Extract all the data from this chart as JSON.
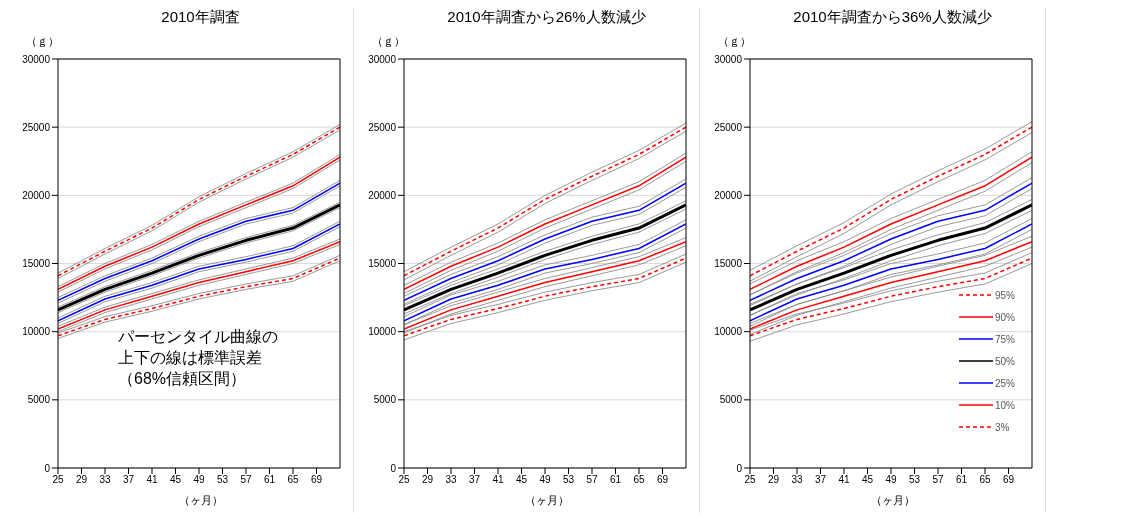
{
  "chart_data": [
    {
      "type": "line",
      "title": "2010年調査",
      "ylabel": "（ｇ）",
      "xlabel": "（ヶ月）",
      "x": [
        25,
        33,
        41,
        49,
        57,
        65,
        73
      ],
      "xlim": [
        25,
        73
      ],
      "xticks": [
        25,
        29,
        33,
        37,
        41,
        45,
        49,
        53,
        57,
        61,
        65,
        69
      ],
      "ylim": [
        0,
        30000
      ],
      "yticks": [
        0,
        5000,
        10000,
        15000,
        20000,
        25000,
        30000
      ],
      "grid": "y",
      "legend": false,
      "annotations": [
        "パーセンタイル曲線の上下の線は標準誤差",
        "（68%信頼区間）"
      ],
      "series": [
        {
          "color": "#ff0000",
          "line_style": "dashed",
          "values": [
            14100,
            15900,
            17600,
            19700,
            21400,
            23000,
            25000
          ]
        },
        {
          "color": "#ff0000",
          "line_style": "solid",
          "values": [
            13100,
            14800,
            16200,
            17900,
            19300,
            20700,
            22800
          ]
        },
        {
          "color": "#0000ff",
          "line_style": "solid",
          "values": [
            12300,
            13900,
            15200,
            16800,
            18100,
            18900,
            20900
          ]
        },
        {
          "color": "#000000",
          "line_style": "solid",
          "values": [
            11600,
            13100,
            14300,
            15600,
            16700,
            17600,
            19300
          ]
        },
        {
          "color": "#0000ff",
          "line_style": "solid",
          "values": [
            10800,
            12400,
            13400,
            14600,
            15300,
            16100,
            17900
          ]
        },
        {
          "color": "#ff0000",
          "line_style": "solid",
          "values": [
            10200,
            11600,
            12600,
            13600,
            14400,
            15200,
            16600
          ]
        },
        {
          "color": "#ff0000",
          "line_style": "dashed",
          "values": [
            9700,
            10900,
            11700,
            12600,
            13300,
            13900,
            15400
          ]
        },
        {
          "color": "#808080",
          "values": [
            13900,
            15700,
            17400,
            19500,
            21200,
            22800,
            24800
          ]
        },
        {
          "color": "#808080",
          "values": [
            14300,
            16100,
            17800,
            19900,
            21600,
            23200,
            25200
          ]
        },
        {
          "color": "#808080",
          "values": [
            12900,
            14600,
            16000,
            17700,
            19100,
            20500,
            22600
          ]
        },
        {
          "color": "#808080",
          "values": [
            13300,
            15000,
            16400,
            18100,
            19500,
            20900,
            23000
          ]
        },
        {
          "color": "#808080",
          "values": [
            12100,
            13700,
            15000,
            16600,
            17900,
            18700,
            20700
          ]
        },
        {
          "color": "#808080",
          "values": [
            12500,
            14100,
            15400,
            17000,
            18300,
            19100,
            21100
          ]
        },
        {
          "color": "#808080",
          "values": [
            11400,
            12900,
            14100,
            15400,
            16500,
            17400,
            19100
          ]
        },
        {
          "color": "#808080",
          "values": [
            11800,
            13300,
            14500,
            15800,
            16900,
            17800,
            19500
          ]
        },
        {
          "color": "#808080",
          "values": [
            10600,
            12200,
            13200,
            14400,
            15100,
            15900,
            17700
          ]
        },
        {
          "color": "#808080",
          "values": [
            11000,
            12600,
            13600,
            14800,
            15500,
            16300,
            18100
          ]
        },
        {
          "color": "#808080",
          "values": [
            10000,
            11400,
            12400,
            13400,
            14200,
            15000,
            16400
          ]
        },
        {
          "color": "#808080",
          "values": [
            10400,
            11800,
            12800,
            13800,
            14600,
            15400,
            16800
          ]
        },
        {
          "color": "#808080",
          "values": [
            9500,
            10700,
            11500,
            12400,
            13100,
            13700,
            15200
          ]
        },
        {
          "color": "#808080",
          "values": [
            9900,
            11100,
            11900,
            12800,
            13500,
            14100,
            15600
          ]
        }
      ]
    },
    {
      "type": "line",
      "title": "2010年調査から26%人数減少",
      "ylabel": "（ｇ）",
      "xlabel": "（ヶ月）",
      "x": [
        25,
        33,
        41,
        49,
        57,
        65,
        73
      ],
      "xlim": [
        25,
        73
      ],
      "xticks": [
        25,
        29,
        33,
        37,
        41,
        45,
        49,
        53,
        57,
        61,
        65,
        69
      ],
      "ylim": [
        0,
        30000
      ],
      "yticks": [
        0,
        5000,
        10000,
        15000,
        20000,
        25000,
        30000
      ],
      "grid": "y",
      "legend": false,
      "series": [
        {
          "color": "#ff0000",
          "line_style": "dashed",
          "values": [
            14100,
            15900,
            17600,
            19700,
            21400,
            23000,
            25000
          ]
        },
        {
          "color": "#ff0000",
          "line_style": "solid",
          "values": [
            13100,
            14800,
            16200,
            17900,
            19300,
            20700,
            22800
          ]
        },
        {
          "color": "#0000ff",
          "line_style": "solid",
          "values": [
            12300,
            13900,
            15200,
            16800,
            18100,
            18900,
            20900
          ]
        },
        {
          "color": "#000000",
          "line_style": "solid",
          "values": [
            11600,
            13100,
            14300,
            15600,
            16700,
            17600,
            19300
          ]
        },
        {
          "color": "#0000ff",
          "line_style": "solid",
          "values": [
            10800,
            12400,
            13400,
            14600,
            15300,
            16100,
            17900
          ]
        },
        {
          "color": "#ff0000",
          "line_style": "solid",
          "values": [
            10200,
            11600,
            12600,
            13600,
            14400,
            15200,
            16600
          ]
        },
        {
          "color": "#ff0000",
          "line_style": "dashed",
          "values": [
            9700,
            10900,
            11700,
            12600,
            13300,
            13900,
            15400
          ]
        },
        {
          "color": "#808080",
          "values": [
            13800,
            15600,
            17300,
            19400,
            21100,
            22700,
            24700
          ]
        },
        {
          "color": "#808080",
          "values": [
            14400,
            16200,
            17900,
            20000,
            21700,
            23300,
            25300
          ]
        },
        {
          "color": "#808080",
          "values": [
            12800,
            14500,
            15900,
            17600,
            19000,
            20400,
            22500
          ]
        },
        {
          "color": "#808080",
          "values": [
            13400,
            15100,
            16500,
            18200,
            19600,
            21000,
            23100
          ]
        },
        {
          "color": "#808080",
          "values": [
            12000,
            13600,
            14900,
            16500,
            17800,
            18600,
            20600
          ]
        },
        {
          "color": "#808080",
          "values": [
            12600,
            14200,
            15500,
            17100,
            18400,
            19200,
            21200
          ]
        },
        {
          "color": "#808080",
          "values": [
            11300,
            12800,
            14000,
            15300,
            16400,
            17300,
            19000
          ]
        },
        {
          "color": "#808080",
          "values": [
            11900,
            13400,
            14600,
            15900,
            17000,
            17900,
            19600
          ]
        },
        {
          "color": "#808080",
          "values": [
            10500,
            12100,
            13100,
            14300,
            15000,
            15800,
            17600
          ]
        },
        {
          "color": "#808080",
          "values": [
            11100,
            12700,
            13700,
            14900,
            15600,
            16400,
            18200
          ]
        },
        {
          "color": "#808080",
          "values": [
            9900,
            11300,
            12300,
            13300,
            14100,
            14900,
            16300
          ]
        },
        {
          "color": "#808080",
          "values": [
            10500,
            11900,
            12900,
            13900,
            14700,
            15500,
            16900
          ]
        },
        {
          "color": "#808080",
          "values": [
            9400,
            10600,
            11400,
            12300,
            13000,
            13600,
            15100
          ]
        },
        {
          "color": "#808080",
          "values": [
            10000,
            11200,
            12000,
            12900,
            13600,
            14200,
            15700
          ]
        }
      ]
    },
    {
      "type": "line",
      "title": "2010年調査から36%人数減少",
      "ylabel": "（ｇ）",
      "xlabel": "（ヶ月）",
      "x": [
        25,
        33,
        41,
        49,
        57,
        65,
        73
      ],
      "xlim": [
        25,
        73
      ],
      "xticks": [
        25,
        29,
        33,
        37,
        41,
        45,
        49,
        53,
        57,
        61,
        65,
        69
      ],
      "ylim": [
        0,
        30000
      ],
      "yticks": [
        0,
        5000,
        10000,
        15000,
        20000,
        25000,
        30000
      ],
      "grid": "y",
      "legend": "bottom right",
      "series": [
        {
          "name": "95%",
          "color": "#ff0000",
          "line_style": "dashed",
          "values": [
            14100,
            15900,
            17600,
            19700,
            21400,
            23000,
            25000
          ]
        },
        {
          "name": "90%",
          "color": "#ff0000",
          "line_style": "solid",
          "values": [
            13100,
            14800,
            16200,
            17900,
            19300,
            20700,
            22800
          ]
        },
        {
          "name": "75%",
          "color": "#0000ff",
          "line_style": "solid",
          "values": [
            12300,
            13900,
            15200,
            16800,
            18100,
            18900,
            20900
          ]
        },
        {
          "name": "50%",
          "color": "#000000",
          "line_style": "solid",
          "values": [
            11600,
            13100,
            14300,
            15600,
            16700,
            17600,
            19300
          ]
        },
        {
          "name": "25%",
          "color": "#0000ff",
          "line_style": "solid",
          "values": [
            10800,
            12400,
            13400,
            14600,
            15300,
            16100,
            17900
          ]
        },
        {
          "name": "10%",
          "color": "#ff0000",
          "line_style": "solid",
          "values": [
            10200,
            11600,
            12600,
            13600,
            14400,
            15200,
            16600
          ]
        },
        {
          "name": "3%",
          "color": "#ff0000",
          "line_style": "dashed",
          "values": [
            9700,
            10900,
            11700,
            12600,
            13300,
            13900,
            15400
          ]
        },
        {
          "color": "#808080",
          "values": [
            13700,
            15500,
            17200,
            19300,
            21000,
            22600,
            24600
          ]
        },
        {
          "color": "#808080",
          "values": [
            14500,
            16300,
            18000,
            20100,
            21800,
            23400,
            25400
          ]
        },
        {
          "color": "#808080",
          "values": [
            12700,
            14400,
            15800,
            17500,
            18900,
            20300,
            22400
          ]
        },
        {
          "color": "#808080",
          "values": [
            13500,
            15200,
            16600,
            18300,
            19700,
            21100,
            23200
          ]
        },
        {
          "color": "#808080",
          "values": [
            11900,
            13500,
            14800,
            16400,
            17700,
            18500,
            20500
          ]
        },
        {
          "color": "#808080",
          "values": [
            12700,
            14300,
            15600,
            17200,
            18500,
            19300,
            21300
          ]
        },
        {
          "color": "#808080",
          "values": [
            11200,
            12700,
            13900,
            15200,
            16300,
            17200,
            18900
          ]
        },
        {
          "color": "#808080",
          "values": [
            12000,
            13500,
            14700,
            16000,
            17100,
            18000,
            19700
          ]
        },
        {
          "color": "#808080",
          "values": [
            10400,
            12000,
            13000,
            14200,
            14900,
            15700,
            17500
          ]
        },
        {
          "color": "#808080",
          "values": [
            11200,
            12800,
            13800,
            15000,
            15700,
            16500,
            18300
          ]
        },
        {
          "color": "#808080",
          "values": [
            9800,
            11200,
            12200,
            13200,
            14000,
            14800,
            16200
          ]
        },
        {
          "color": "#808080",
          "values": [
            10600,
            12000,
            13000,
            14000,
            14800,
            15600,
            17000
          ]
        },
        {
          "color": "#808080",
          "values": [
            9300,
            10500,
            11300,
            12200,
            12900,
            13500,
            15000
          ]
        },
        {
          "color": "#808080",
          "values": [
            10100,
            11300,
            12100,
            13000,
            13700,
            14300,
            15800
          ]
        }
      ]
    }
  ]
}
